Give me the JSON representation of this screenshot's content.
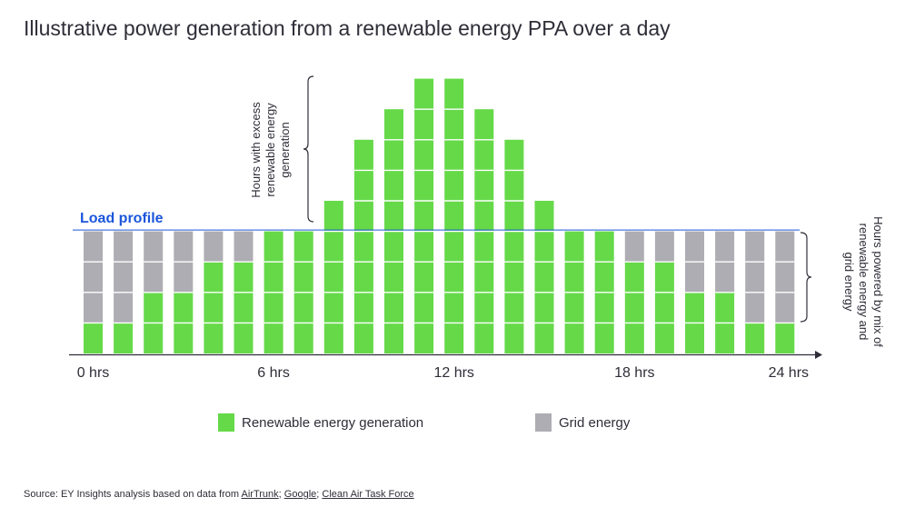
{
  "title": "Illustrative power generation from a renewable energy PPA over a day",
  "chart_data": {
    "type": "bar",
    "stacked": true,
    "unit": "blocks",
    "x_count": 24,
    "x_ticks": [
      {
        "hour": 0,
        "label": "0 hrs"
      },
      {
        "hour": 6,
        "label": "6 hrs"
      },
      {
        "hour": 12,
        "label": "12 hrs"
      },
      {
        "hour": 18,
        "label": "18 hrs"
      },
      {
        "hour": 24,
        "label": "24 hrs"
      }
    ],
    "series": [
      {
        "name": "Renewable energy generation",
        "color": "#66d949",
        "values": [
          1,
          1,
          2,
          2,
          3,
          3,
          4,
          4,
          5,
          7,
          8,
          9,
          9,
          8,
          7,
          5,
          4,
          4,
          3,
          3,
          2,
          2,
          1,
          1
        ]
      },
      {
        "name": "Grid energy",
        "color": "#adadb3",
        "values": [
          3,
          3,
          2,
          2,
          1,
          1,
          0,
          0,
          0,
          0,
          0,
          0,
          0,
          0,
          0,
          0,
          0,
          0,
          1,
          1,
          2,
          2,
          3,
          3
        ]
      }
    ],
    "load_profile": {
      "label": "Load profile",
      "value": 4,
      "color": "#1a56db"
    },
    "ylim": [
      0,
      9.6
    ],
    "annotations": [
      {
        "id": "excess",
        "lines": [
          "Hours with excess",
          "renewable energy",
          "generation"
        ]
      },
      {
        "id": "mix",
        "lines": [
          "Hours powered by mix of",
          "renewable energy and",
          "grid energy"
        ]
      }
    ]
  },
  "legend": [
    {
      "label": "Renewable energy generation",
      "color": "#66d949"
    },
    {
      "label": "Grid energy",
      "color": "#adadb3"
    }
  ],
  "source": {
    "prefix": "Source: EY Insights analysis based on data from ",
    "links": [
      "AirTrunk",
      "Google",
      "Clean Air Task Force"
    ],
    "separator": "; "
  }
}
